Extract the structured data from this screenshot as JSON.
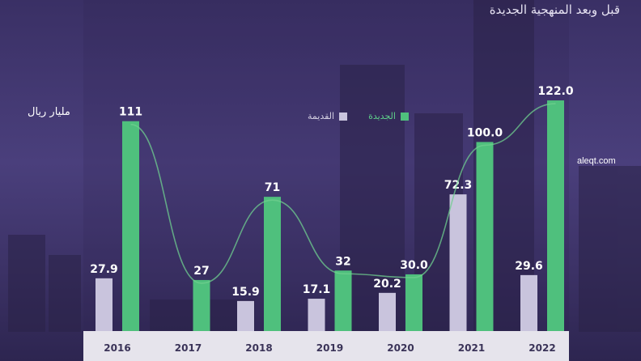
{
  "header": {
    "title": "قبل وبعد المنهجية الجديدة",
    "unit_label": "مليار ريال",
    "source": "aleqt.com"
  },
  "colors": {
    "new": "#4fc07d",
    "old": "#c9c4dd",
    "axis_band": "#e6e4ec",
    "background": "#3b3168"
  },
  "chart_data": {
    "type": "bar",
    "categories": [
      "2016",
      "2017",
      "2018",
      "2019",
      "2020",
      "2021",
      "2022"
    ],
    "series": [
      {
        "name": "القديمة",
        "values": [
          27.9,
          null,
          15.9,
          17.1,
          20.2,
          72.3,
          29.6
        ],
        "labels": [
          "27.9",
          "",
          "15.9",
          "17.1",
          "20.2",
          "72.3",
          "29.6"
        ]
      },
      {
        "name": "الجديدة",
        "values": [
          111,
          27,
          71,
          32,
          30.0,
          100.0,
          122.0
        ],
        "labels": [
          "111",
          "27",
          "71",
          "32",
          "30.0",
          "100.0",
          "122.0"
        ]
      }
    ],
    "title": "قبل وبعد المنهجية الجديدة",
    "ylabel": "مليار ريال",
    "xlabel": "",
    "ylim": [
      0,
      140
    ],
    "legend": "top-center",
    "grid": false,
    "trend_line": "smooth curve over the new series"
  }
}
